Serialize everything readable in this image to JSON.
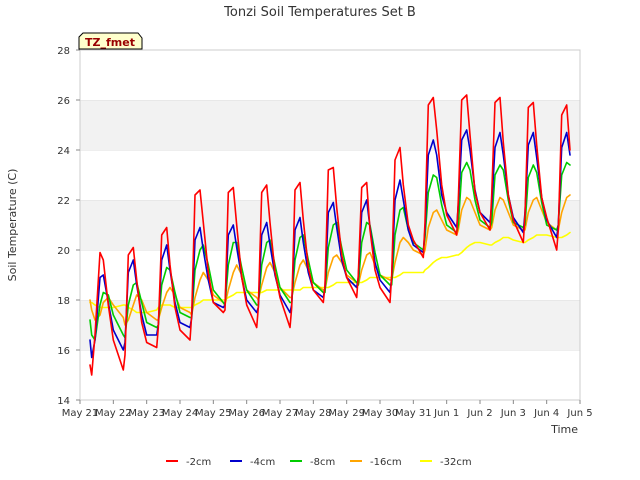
{
  "chart_data": {
    "type": "line",
    "title": "Tonzi Soil Temperatures Set B",
    "xlabel": "Time",
    "ylabel": "Soil Temperature (C)",
    "ylim": [
      14,
      28
    ],
    "xlim": [
      "May 21",
      "Jun 5"
    ],
    "y_ticks": [
      14,
      16,
      18,
      20,
      22,
      24,
      26,
      28
    ],
    "x_ticks": [
      "May 21",
      "May 22",
      "May 23",
      "May 24",
      "May 25",
      "May 26",
      "May 27",
      "May 28",
      "May 29",
      "May 30",
      "May 31",
      "Jun 1",
      "Jun 2",
      "Jun 3",
      "Jun 4",
      "Jun 5"
    ],
    "grid": "horizontal alternating bands",
    "legend_position": "bottom",
    "annotation": "TZ_fmet",
    "x": [
      0.3,
      0.35,
      0.45,
      0.6,
      0.7,
      0.85,
      1.0,
      1.3,
      1.35,
      1.45,
      1.6,
      1.7,
      1.85,
      2.0,
      2.3,
      2.35,
      2.45,
      2.6,
      2.7,
      2.85,
      3.0,
      3.3,
      3.35,
      3.45,
      3.6,
      3.7,
      3.85,
      4.0,
      4.3,
      4.35,
      4.45,
      4.6,
      4.7,
      4.85,
      5.0,
      5.3,
      5.35,
      5.45,
      5.6,
      5.7,
      5.85,
      6.0,
      6.3,
      6.35,
      6.45,
      6.6,
      6.7,
      6.85,
      7.0,
      7.3,
      7.35,
      7.45,
      7.6,
      7.7,
      7.85,
      8.0,
      8.3,
      8.35,
      8.45,
      8.6,
      8.7,
      8.85,
      9.0,
      9.3,
      9.35,
      9.45,
      9.6,
      9.7,
      9.85,
      10.0,
      10.3,
      10.35,
      10.45,
      10.6,
      10.7,
      10.85,
      11.0,
      11.3,
      11.35,
      11.45,
      11.6,
      11.7,
      11.85,
      12.0,
      12.3,
      12.35,
      12.45,
      12.6,
      12.7,
      12.85,
      13.0,
      13.3,
      13.35,
      13.45,
      13.6,
      13.7,
      13.85,
      14.0,
      14.3,
      14.35,
      14.45,
      14.6,
      14.7
    ],
    "series": [
      {
        "name": "-2cm",
        "color": "#ff0000",
        "values": [
          15.4,
          15.0,
          16.6,
          19.9,
          19.6,
          17.8,
          16.4,
          15.2,
          15.8,
          19.8,
          20.1,
          18.8,
          17.1,
          16.3,
          16.1,
          16.9,
          20.6,
          20.9,
          19.4,
          17.7,
          16.8,
          16.4,
          17.4,
          22.2,
          22.4,
          21.1,
          19.1,
          17.9,
          17.5,
          17.6,
          22.3,
          22.5,
          21.0,
          18.9,
          17.8,
          16.9,
          17.7,
          22.3,
          22.6,
          21.1,
          19.1,
          18.1,
          16.9,
          17.7,
          22.4,
          22.7,
          21.2,
          19.3,
          18.4,
          17.9,
          18.6,
          23.2,
          23.3,
          21.7,
          19.8,
          18.9,
          18.1,
          19.0,
          22.5,
          22.7,
          20.8,
          19.2,
          18.5,
          17.9,
          19.0,
          23.6,
          24.1,
          22.6,
          21.0,
          20.4,
          19.7,
          21.1,
          25.8,
          26.1,
          24.8,
          22.6,
          21.4,
          20.6,
          22.0,
          26.0,
          26.2,
          24.6,
          22.3,
          21.5,
          20.8,
          22.2,
          25.9,
          26.1,
          24.3,
          22.2,
          21.2,
          20.3,
          21.4,
          25.7,
          25.9,
          24.2,
          22.1,
          21.3,
          20.0,
          20.8,
          25.4,
          25.8,
          24.0
        ]
      },
      {
        "name": "-4cm",
        "color": "#0000cc",
        "values": [
          16.4,
          15.7,
          16.4,
          18.9,
          19.0,
          17.9,
          16.8,
          16.0,
          16.3,
          19.1,
          19.6,
          18.6,
          17.4,
          16.6,
          16.6,
          17.0,
          19.6,
          20.2,
          19.2,
          17.9,
          17.1,
          16.9,
          17.3,
          20.4,
          20.9,
          20.0,
          18.8,
          17.9,
          17.7,
          17.8,
          20.6,
          21.0,
          20.1,
          18.9,
          18.0,
          17.5,
          17.7,
          20.6,
          21.1,
          20.2,
          19.0,
          18.2,
          17.5,
          17.8,
          20.8,
          21.3,
          20.3,
          19.1,
          18.4,
          18.1,
          18.5,
          21.5,
          21.9,
          20.9,
          19.6,
          18.9,
          18.5,
          18.9,
          21.5,
          22.0,
          20.9,
          19.5,
          18.8,
          18.3,
          18.9,
          22.0,
          22.8,
          22.0,
          20.8,
          20.2,
          19.9,
          20.8,
          23.8,
          24.4,
          23.8,
          22.2,
          21.5,
          20.9,
          21.8,
          24.4,
          24.8,
          24.0,
          22.4,
          21.5,
          21.1,
          21.8,
          24.1,
          24.7,
          23.8,
          22.2,
          21.3,
          20.7,
          21.5,
          24.2,
          24.7,
          23.7,
          22.1,
          21.2,
          20.5,
          21.0,
          24.1,
          24.7,
          23.8
        ]
      },
      {
        "name": "-8cm",
        "color": "#00cc00",
        "values": [
          17.2,
          16.6,
          16.4,
          17.8,
          18.3,
          18.2,
          17.4,
          16.6,
          16.5,
          17.8,
          18.6,
          18.7,
          17.9,
          17.1,
          16.9,
          17.0,
          18.6,
          19.3,
          19.2,
          18.3,
          17.5,
          17.3,
          17.3,
          19.2,
          20.0,
          20.2,
          19.4,
          18.4,
          17.9,
          17.8,
          19.4,
          20.3,
          20.3,
          19.3,
          18.4,
          17.8,
          17.8,
          19.4,
          20.3,
          20.4,
          19.4,
          18.5,
          17.9,
          17.9,
          19.6,
          20.5,
          20.6,
          19.6,
          18.7,
          18.3,
          18.3,
          20.1,
          21.0,
          21.1,
          20.1,
          19.2,
          18.7,
          18.6,
          20.3,
          21.1,
          21.0,
          19.9,
          19.0,
          18.6,
          18.6,
          20.6,
          21.6,
          21.7,
          20.8,
          20.3,
          20.0,
          20.5,
          22.3,
          23.0,
          22.9,
          21.8,
          21.0,
          20.7,
          21.0,
          23.1,
          23.5,
          23.2,
          22.0,
          21.2,
          20.9,
          21.1,
          23.0,
          23.4,
          23.2,
          22.0,
          21.1,
          20.9,
          21.0,
          22.9,
          23.4,
          23.1,
          21.9,
          21.0,
          20.8,
          21.0,
          23.0,
          23.5,
          23.4
        ]
      },
      {
        "name": "-16cm",
        "color": "#ffa500",
        "values": [
          18.0,
          17.6,
          17.2,
          17.4,
          17.9,
          18.1,
          17.8,
          17.3,
          17.0,
          17.2,
          17.8,
          18.2,
          18.0,
          17.5,
          17.2,
          17.2,
          17.7,
          18.3,
          18.5,
          18.2,
          17.7,
          17.5,
          17.4,
          18.1,
          18.8,
          19.1,
          18.8,
          18.2,
          17.9,
          17.8,
          18.4,
          19.1,
          19.4,
          19.0,
          18.4,
          18.1,
          18.0,
          18.6,
          19.3,
          19.5,
          19.1,
          18.5,
          18.1,
          18.1,
          18.7,
          19.4,
          19.6,
          19.2,
          18.7,
          18.4,
          18.4,
          19.1,
          19.7,
          19.8,
          19.5,
          19.0,
          18.7,
          18.6,
          19.2,
          19.8,
          19.9,
          19.4,
          19.0,
          18.8,
          18.8,
          19.5,
          20.3,
          20.5,
          20.3,
          20.0,
          19.8,
          20.0,
          20.9,
          21.5,
          21.6,
          21.2,
          20.8,
          20.6,
          20.8,
          21.6,
          22.1,
          22.0,
          21.5,
          21.0,
          20.8,
          20.9,
          21.6,
          22.1,
          22.0,
          21.5,
          21.0,
          20.8,
          20.8,
          21.5,
          22.0,
          22.1,
          21.6,
          21.1,
          20.8,
          20.8,
          21.5,
          22.1,
          22.2
        ]
      },
      {
        "name": "-32cm",
        "color": "#ffff00",
        "values": [
          17.9,
          17.9,
          17.8,
          17.7,
          17.7,
          17.7,
          17.7,
          17.8,
          17.8,
          17.7,
          17.6,
          17.5,
          17.5,
          17.5,
          17.6,
          17.7,
          17.8,
          17.8,
          17.8,
          17.7,
          17.7,
          17.7,
          17.7,
          17.8,
          17.9,
          18.0,
          18.0,
          18.0,
          18.0,
          18.0,
          18.1,
          18.2,
          18.3,
          18.3,
          18.3,
          18.3,
          18.3,
          18.3,
          18.4,
          18.4,
          18.4,
          18.4,
          18.4,
          18.4,
          18.4,
          18.4,
          18.5,
          18.5,
          18.5,
          18.5,
          18.5,
          18.5,
          18.6,
          18.7,
          18.7,
          18.7,
          18.7,
          18.7,
          18.7,
          18.8,
          18.9,
          18.9,
          18.9,
          18.9,
          18.9,
          18.9,
          19.0,
          19.1,
          19.1,
          19.1,
          19.1,
          19.2,
          19.3,
          19.5,
          19.6,
          19.7,
          19.7,
          19.8,
          19.8,
          19.9,
          20.1,
          20.2,
          20.3,
          20.3,
          20.2,
          20.2,
          20.3,
          20.4,
          20.5,
          20.5,
          20.4,
          20.3,
          20.3,
          20.4,
          20.5,
          20.6,
          20.6,
          20.6,
          20.5,
          20.5,
          20.5,
          20.6,
          20.7
        ]
      }
    ]
  }
}
